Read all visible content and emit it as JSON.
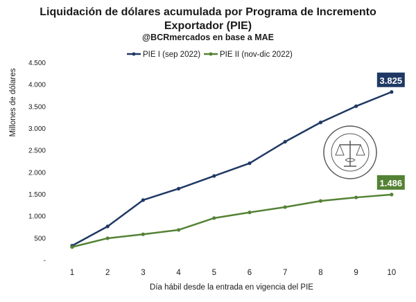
{
  "chart_data": {
    "type": "line",
    "title_line1": "Liquidación de dólares acumulada por Programa de Incremento",
    "title_line2": "Exportador (PIE)",
    "subtitle": "@BCRmercados  en base a MAE",
    "xlabel": "Día hábil desde la entrada en vigencia del PIE",
    "ylabel": "Millones de dólares",
    "x": [
      1,
      2,
      3,
      4,
      5,
      6,
      7,
      8,
      9,
      10
    ],
    "ylim": [
      0,
      4500
    ],
    "yticks": [
      "-",
      "500",
      "1.000",
      "1.500",
      "2.000",
      "2.500",
      "3.000",
      "3.500",
      "4.000",
      "4.500"
    ],
    "grid": false,
    "legend_position": "top",
    "series": [
      {
        "name": "PIE I (sep 2022)",
        "color": "#1f3864",
        "values": [
          320,
          760,
          1360,
          1620,
          1910,
          2200,
          2690,
          3130,
          3500,
          3825
        ],
        "end_label": "3.825"
      },
      {
        "name": "PIE II (nov-dic 2022)",
        "color": "#548235",
        "values": [
          290,
          490,
          580,
          680,
          950,
          1080,
          1200,
          1340,
          1420,
          1486
        ],
        "end_label": "1.486"
      }
    ],
    "watermark": "BOLSA DE COMERCIO DE ROSARIO"
  }
}
